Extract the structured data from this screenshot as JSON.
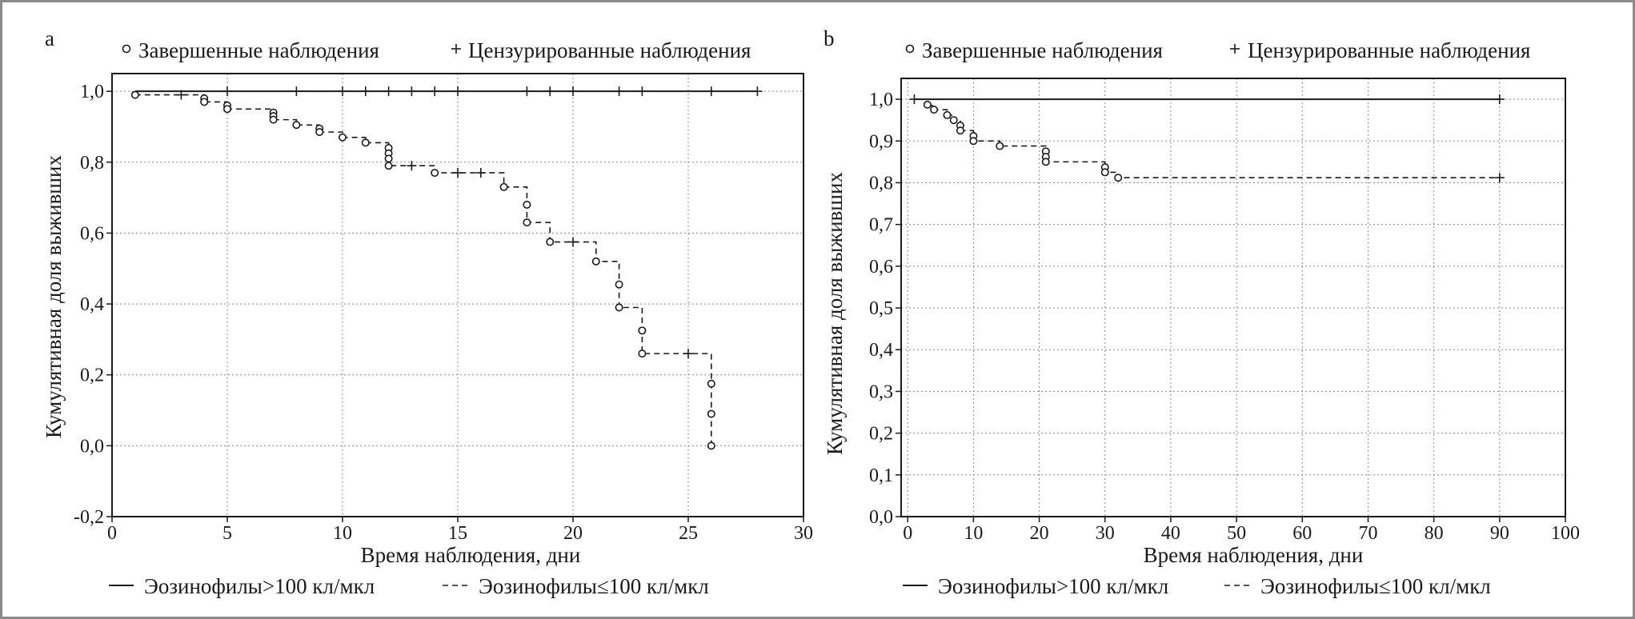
{
  "chart_data": [
    {
      "type": "line",
      "subtype": "kaplan-meier",
      "panel": "a",
      "xlabel": "Время наблюдения, дни",
      "ylabel": "Кумулятивная доля выживших",
      "xlim": [
        0,
        30
      ],
      "ylim": [
        -0.2,
        1.05
      ],
      "xticks": [
        0,
        5,
        10,
        15,
        20,
        25,
        30
      ],
      "xtick_labels": [
        "0",
        "5",
        "10",
        "15",
        "20",
        "25",
        "30"
      ],
      "yticks": [
        -0.2,
        0,
        0.2,
        0.4,
        0.6,
        0.8,
        1.0
      ],
      "ytick_labels": [
        "-0,2",
        "0,0",
        "0,2",
        "0,4",
        "0,6",
        "0,8",
        "1,0"
      ],
      "grid": true,
      "top_legend": {
        "event_label": "Завершенные наблюдения",
        "censored_label": "Цензурированные наблюдения",
        "position": "top"
      },
      "bottom_legend": {
        "solid_label": "Эозинофилы>100 кл/мкл",
        "dashed_label": "Эозинофилы≤100 кл/мкл",
        "position": "bottom"
      },
      "series": [
        {
          "name": "Эозинофилы>100 кл/мкл",
          "style": "solid",
          "steps": [
            [
              1,
              1.0
            ],
            [
              28,
              1.0
            ]
          ],
          "events": [],
          "censored": [
            [
              5,
              1.0
            ],
            [
              8,
              1.0
            ],
            [
              10,
              1.0
            ],
            [
              11,
              1.0
            ],
            [
              12,
              1.0
            ],
            [
              13,
              1.0
            ],
            [
              14,
              1.0
            ],
            [
              15,
              1.0
            ],
            [
              18,
              1.0
            ],
            [
              19,
              1.0
            ],
            [
              20,
              1.0
            ],
            [
              22,
              1.0
            ],
            [
              23,
              1.0
            ],
            [
              26,
              1.0
            ],
            [
              28,
              1.0
            ]
          ]
        },
        {
          "name": "Эозинофилы≤100 кл/мкл",
          "style": "dashed",
          "steps": [
            [
              1,
              0.99
            ],
            [
              4,
              0.97
            ],
            [
              5,
              0.95
            ],
            [
              7,
              0.92
            ],
            [
              8,
              0.905
            ],
            [
              9,
              0.885
            ],
            [
              10,
              0.87
            ],
            [
              11,
              0.855
            ],
            [
              12,
              0.79
            ],
            [
              14,
              0.77
            ],
            [
              17,
              0.73
            ],
            [
              18,
              0.63
            ],
            [
              19,
              0.575
            ],
            [
              21,
              0.52
            ],
            [
              22,
              0.39
            ],
            [
              23,
              0.26
            ],
            [
              26,
              0.0
            ]
          ],
          "events": [
            [
              1,
              0.99
            ],
            [
              4,
              0.98
            ],
            [
              4,
              0.97
            ],
            [
              5,
              0.96
            ],
            [
              5,
              0.95
            ],
            [
              7,
              0.94
            ],
            [
              7,
              0.93
            ],
            [
              7,
              0.92
            ],
            [
              8,
              0.905
            ],
            [
              9,
              0.895
            ],
            [
              9,
              0.885
            ],
            [
              10,
              0.87
            ],
            [
              11,
              0.855
            ],
            [
              12,
              0.84
            ],
            [
              12,
              0.825
            ],
            [
              12,
              0.81
            ],
            [
              12,
              0.79
            ],
            [
              14,
              0.77
            ],
            [
              17,
              0.73
            ],
            [
              18,
              0.68
            ],
            [
              18,
              0.63
            ],
            [
              19,
              0.575
            ],
            [
              21,
              0.52
            ],
            [
              22,
              0.455
            ],
            [
              22,
              0.39
            ],
            [
              23,
              0.325
            ],
            [
              23,
              0.26
            ],
            [
              26,
              0.175
            ],
            [
              26,
              0.09
            ],
            [
              26,
              0.0
            ]
          ],
          "censored": [
            [
              3,
              0.99
            ],
            [
              13,
              0.79
            ],
            [
              15,
              0.77
            ],
            [
              16,
              0.77
            ],
            [
              20,
              0.575
            ],
            [
              25,
              0.26
            ]
          ]
        }
      ]
    },
    {
      "type": "line",
      "subtype": "kaplan-meier",
      "panel": "b",
      "xlabel": "Время наблюдения, дни",
      "ylabel": "Кумулятивная доля выживших",
      "xlim": [
        -1,
        100
      ],
      "ylim": [
        0,
        1.05
      ],
      "xticks": [
        0,
        10,
        20,
        30,
        40,
        50,
        60,
        70,
        80,
        90,
        100
      ],
      "xtick_labels": [
        "0",
        "10",
        "20",
        "30",
        "40",
        "50",
        "60",
        "70",
        "80",
        "90",
        "100"
      ],
      "yticks": [
        0,
        0.1,
        0.2,
        0.3,
        0.4,
        0.5,
        0.6,
        0.7,
        0.8,
        0.9,
        1.0
      ],
      "ytick_labels": [
        "0,0",
        "0,1",
        "0,2",
        "0,3",
        "0,4",
        "0,5",
        "0,6",
        "0,7",
        "0,8",
        "0,9",
        "1,0"
      ],
      "grid": true,
      "top_legend": {
        "event_label": "Завершенные наблюдения",
        "censored_label": "Цензурированные наблюдения",
        "position": "top"
      },
      "bottom_legend": {
        "solid_label": "Эозинофилы>100 кл/мкл",
        "dashed_label": "Эозинофилы≤100 кл/мкл",
        "position": "bottom"
      },
      "series": [
        {
          "name": "Эозинофилы>100 кл/мкл",
          "style": "solid",
          "steps": [
            [
              1,
              1.0
            ],
            [
              90,
              1.0
            ]
          ],
          "events": [],
          "censored": [
            [
              1,
              1.0
            ],
            [
              90,
              1.0
            ]
          ]
        },
        {
          "name": "Эозинофилы≤100 кл/мкл",
          "style": "dashed",
          "steps": [
            [
              3,
              0.985
            ],
            [
              4,
              0.975
            ],
            [
              6,
              0.962
            ],
            [
              7,
              0.95
            ],
            [
              8,
              0.925
            ],
            [
              10,
              0.9
            ],
            [
              14,
              0.888
            ],
            [
              21,
              0.85
            ],
            [
              30,
              0.825
            ],
            [
              32,
              0.812
            ],
            [
              90,
              0.812
            ]
          ],
          "events": [
            [
              3,
              0.987
            ],
            [
              4,
              0.975
            ],
            [
              6,
              0.962
            ],
            [
              7,
              0.95
            ],
            [
              8,
              0.937
            ],
            [
              8,
              0.925
            ],
            [
              10,
              0.912
            ],
            [
              10,
              0.9
            ],
            [
              14,
              0.888
            ],
            [
              21,
              0.875
            ],
            [
              21,
              0.862
            ],
            [
              21,
              0.85
            ],
            [
              30,
              0.837
            ],
            [
              30,
              0.825
            ],
            [
              32,
              0.812
            ]
          ],
          "censored": [
            [
              90,
              0.812
            ]
          ]
        }
      ]
    }
  ]
}
